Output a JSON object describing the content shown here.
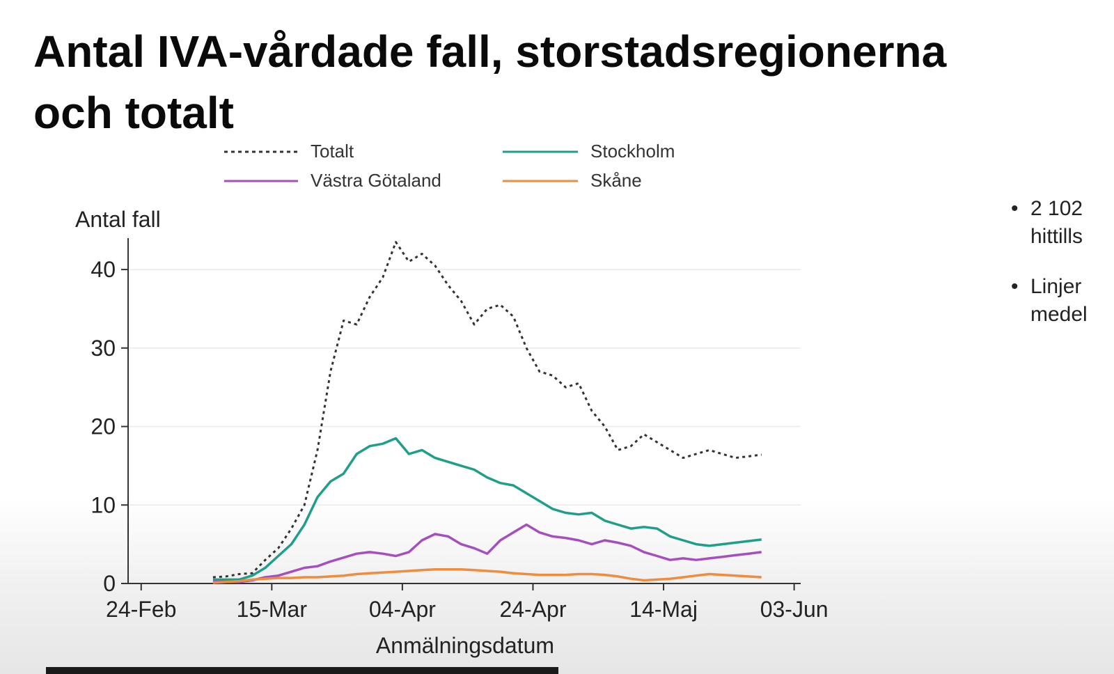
{
  "slide": {
    "title_line1": "Antal IVA-vårdade fall, storstadsregionerna",
    "title_line2": "och totalt",
    "bullets": [
      {
        "line1": "2 102",
        "line2": "hittills"
      },
      {
        "line1": "Linjer",
        "line2": "medel"
      }
    ]
  },
  "chart_data": {
    "type": "line",
    "title": "",
    "xlabel": "Anmälningsdatum",
    "ylabel": "Antal fall",
    "ylim": [
      0,
      44
    ],
    "yticks": [
      0,
      10,
      20,
      30,
      40
    ],
    "xticks": [
      "24-Feb",
      "15-Mar",
      "04-Apr",
      "24-Apr",
      "14-Maj",
      "03-Jun"
    ],
    "xlim_days": [
      -2,
      101
    ],
    "xtick_days": [
      0,
      20,
      40,
      60,
      80,
      100
    ],
    "grid": true,
    "legend_position": "top",
    "series": [
      {
        "name": "Totalt",
        "color": "#333333",
        "dash": true,
        "x": [
          11,
          13,
          15,
          17,
          19,
          21,
          23,
          25,
          27,
          29,
          31,
          33,
          35,
          37,
          39,
          41,
          43,
          45,
          47,
          49,
          51,
          53,
          55,
          57,
          59,
          61,
          63,
          65,
          67,
          69,
          71,
          73,
          75,
          77,
          79,
          81,
          83,
          85,
          87,
          89,
          91,
          93,
          95
        ],
        "y": [
          0.8,
          0.9,
          1.2,
          1.3,
          3.0,
          4.5,
          7.0,
          10.0,
          17.0,
          27.0,
          33.5,
          33.0,
          36.5,
          39.0,
          43.5,
          41.0,
          42.0,
          40.5,
          38.0,
          36.0,
          33.0,
          35.0,
          35.5,
          34.0,
          30.0,
          27.0,
          26.5,
          25.0,
          25.5,
          22.0,
          20.0,
          17.0,
          17.5,
          19.0,
          18.0,
          17.0,
          16.0,
          16.5,
          17.0,
          16.5,
          16.0,
          16.2,
          16.4
        ]
      },
      {
        "name": "Stockholm",
        "color": "#1f9e89",
        "dash": false,
        "x": [
          11,
          13,
          15,
          17,
          19,
          21,
          23,
          25,
          27,
          29,
          31,
          33,
          35,
          37,
          39,
          41,
          43,
          45,
          47,
          49,
          51,
          53,
          55,
          57,
          59,
          61,
          63,
          65,
          67,
          69,
          71,
          73,
          75,
          77,
          79,
          81,
          83,
          85,
          87,
          89,
          91,
          93,
          95
        ],
        "y": [
          0.5,
          0.5,
          0.5,
          1.0,
          2.0,
          3.5,
          5.0,
          7.5,
          11.0,
          13.0,
          14.0,
          16.5,
          17.5,
          17.8,
          18.5,
          16.5,
          17.0,
          16.0,
          15.5,
          15.0,
          14.5,
          13.5,
          12.8,
          12.5,
          11.5,
          10.5,
          9.5,
          9.0,
          8.8,
          9.0,
          8.0,
          7.5,
          7.0,
          7.2,
          7.0,
          6.0,
          5.5,
          5.0,
          4.8,
          5.0,
          5.2,
          5.4,
          5.6
        ]
      },
      {
        "name": "Västra Götaland",
        "color": "#a54fbf",
        "dash": false,
        "x": [
          11,
          13,
          15,
          17,
          19,
          21,
          23,
          25,
          27,
          29,
          31,
          33,
          35,
          37,
          39,
          41,
          43,
          45,
          47,
          49,
          51,
          53,
          55,
          57,
          59,
          61,
          63,
          65,
          67,
          69,
          71,
          73,
          75,
          77,
          79,
          81,
          83,
          85,
          87,
          89,
          91,
          93,
          95
        ],
        "y": [
          0.2,
          0.2,
          0.2,
          0.4,
          0.8,
          1.0,
          1.5,
          2.0,
          2.2,
          2.8,
          3.3,
          3.8,
          4.0,
          3.8,
          3.5,
          4.0,
          5.5,
          6.3,
          6.0,
          5.0,
          4.5,
          3.8,
          5.5,
          6.5,
          7.5,
          6.5,
          6.0,
          5.8,
          5.5,
          5.0,
          5.5,
          5.2,
          4.8,
          4.0,
          3.5,
          3.0,
          3.2,
          3.0,
          3.2,
          3.4,
          3.6,
          3.8,
          4.0
        ]
      },
      {
        "name": "Skåne",
        "color": "#ef8c3e",
        "dash": false,
        "x": [
          11,
          13,
          15,
          17,
          19,
          21,
          23,
          25,
          27,
          29,
          31,
          33,
          35,
          37,
          39,
          41,
          43,
          45,
          47,
          49,
          51,
          53,
          55,
          57,
          59,
          61,
          63,
          65,
          67,
          69,
          71,
          73,
          75,
          77,
          79,
          81,
          83,
          85,
          87,
          89,
          91,
          93,
          95
        ],
        "y": [
          0.1,
          0.2,
          0.3,
          0.5,
          0.6,
          0.7,
          0.7,
          0.8,
          0.8,
          0.9,
          1.0,
          1.2,
          1.3,
          1.4,
          1.5,
          1.6,
          1.7,
          1.8,
          1.8,
          1.8,
          1.7,
          1.6,
          1.5,
          1.3,
          1.2,
          1.1,
          1.1,
          1.1,
          1.2,
          1.2,
          1.1,
          0.9,
          0.6,
          0.4,
          0.5,
          0.6,
          0.8,
          1.0,
          1.2,
          1.1,
          1.0,
          0.9,
          0.8
        ]
      }
    ]
  }
}
